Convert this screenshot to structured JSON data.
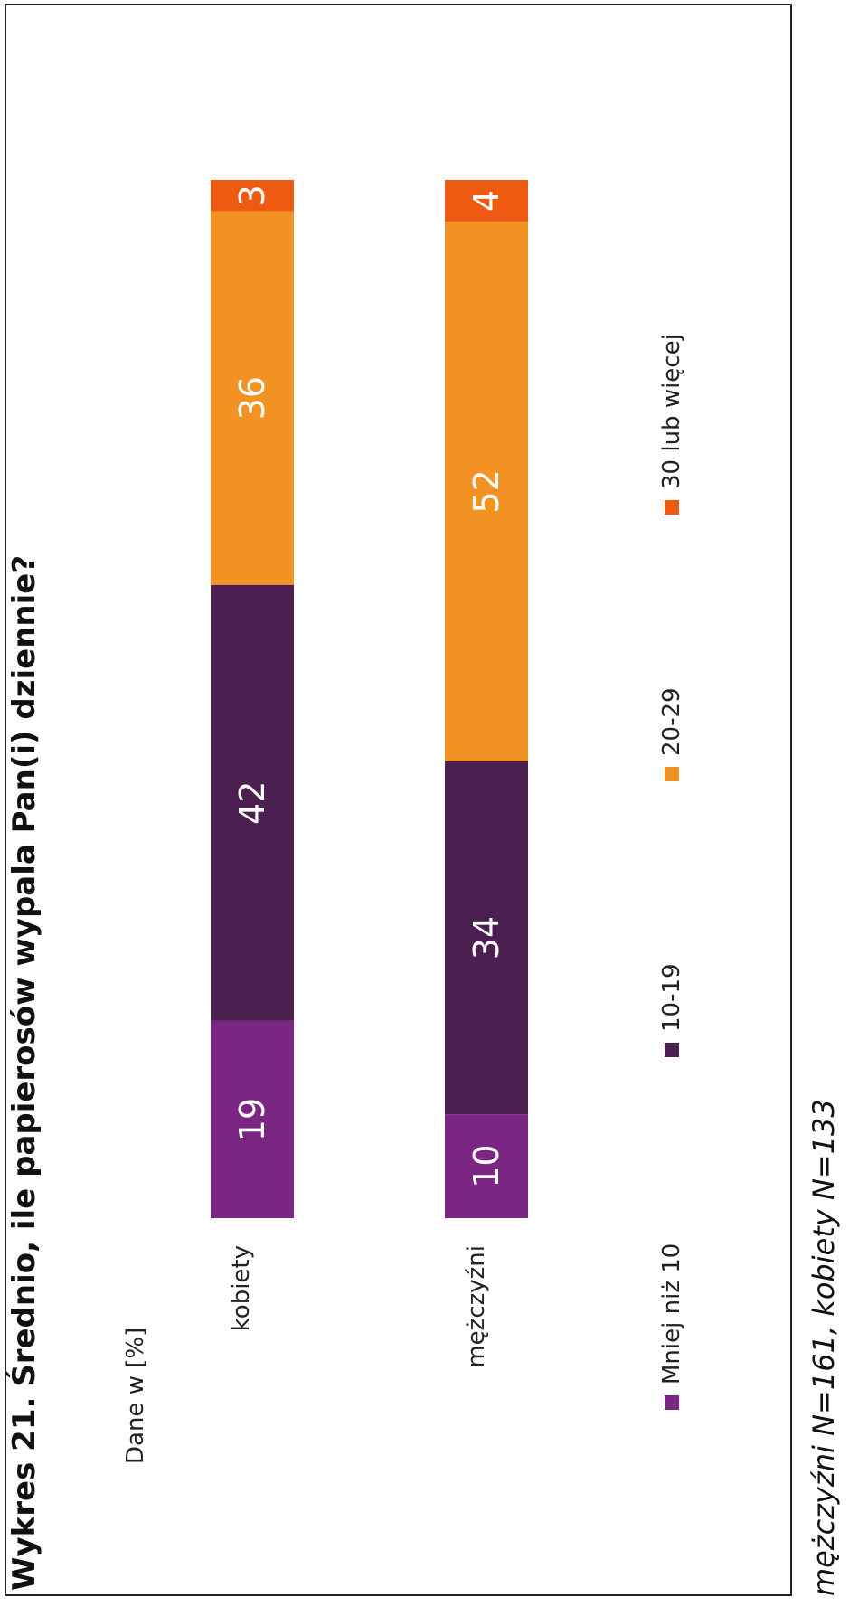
{
  "title": "Wykres 21. Średnio, ile papierosów wypala Pan(i) dziennie?",
  "footnote": "mężczyźni N=161,  kobiety N=133",
  "chart_data": {
    "type": "bar",
    "stacked": true,
    "orientation": "horizontal",
    "units_label": "Dane w [%]",
    "categories": [
      "kobiety",
      "mężczyźni"
    ],
    "series": [
      {
        "name": "Mniej niż 10",
        "color": "#7B2682",
        "values": [
          19,
          10
        ]
      },
      {
        "name": "10-19",
        "color": "#4B1F4F",
        "values": [
          42,
          34
        ]
      },
      {
        "name": "20-29",
        "color": "#F29222",
        "values": [
          36,
          52
        ]
      },
      {
        "name": "30 lub więcej",
        "color": "#EE5A0F",
        "values": [
          3,
          4
        ]
      }
    ],
    "xlim": [
      0,
      100
    ],
    "legend_position": "bottom",
    "grid": false
  }
}
